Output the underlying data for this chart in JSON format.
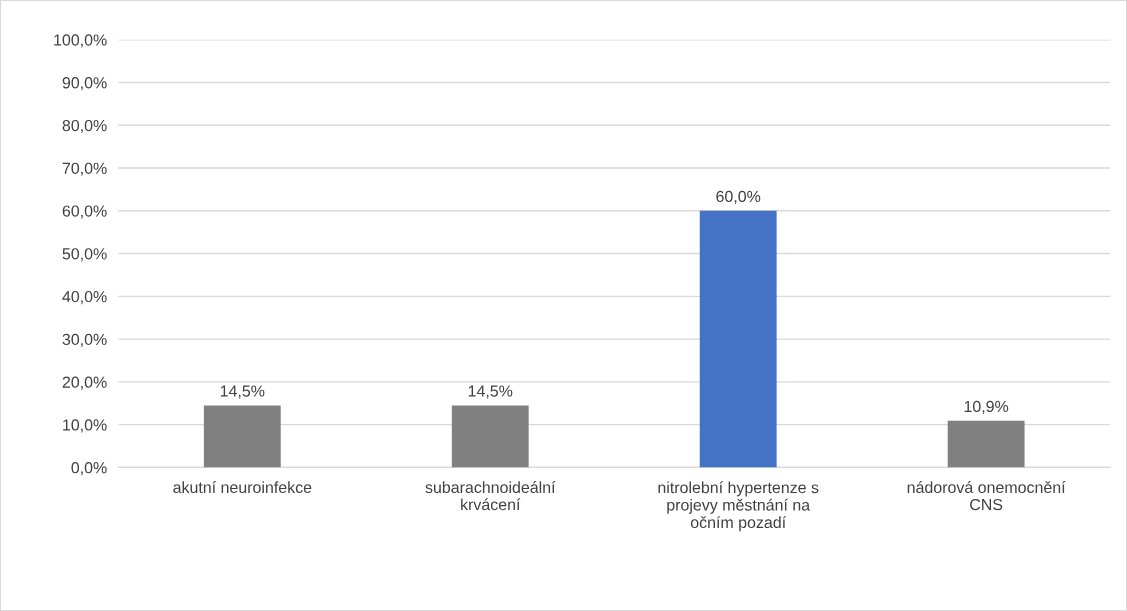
{
  "chart_data": {
    "type": "bar",
    "categories": [
      "akutní neuroinfekce",
      "subarachnoideální\nkrvácení",
      "nitrolební hypertenze s\nprojevy městnání na\nočním pozadí",
      "nádorová onemocnění\nCNS"
    ],
    "values": [
      14.5,
      14.5,
      60.0,
      10.9
    ],
    "colors": [
      "#808080",
      "#808080",
      "#4472c4",
      "#808080"
    ],
    "value_labels": [
      "14,5%",
      "14,5%",
      "60,0%",
      "10,9%"
    ],
    "ylim": [
      0,
      100
    ],
    "yticks": [
      {
        "value": 0,
        "label": "0,0%"
      },
      {
        "value": 10,
        "label": "10,0%"
      },
      {
        "value": 20,
        "label": "20,0%"
      },
      {
        "value": 30,
        "label": "30,0%"
      },
      {
        "value": 40,
        "label": "40,0%"
      },
      {
        "value": 50,
        "label": "50,0%"
      },
      {
        "value": 60,
        "label": "60,0%"
      },
      {
        "value": 70,
        "label": "70,0%"
      },
      {
        "value": 80,
        "label": "80,0%"
      },
      {
        "value": 90,
        "label": "90,0%"
      },
      {
        "value": 100,
        "label": "100,0%"
      }
    ],
    "grid": "y",
    "legend": false
  }
}
